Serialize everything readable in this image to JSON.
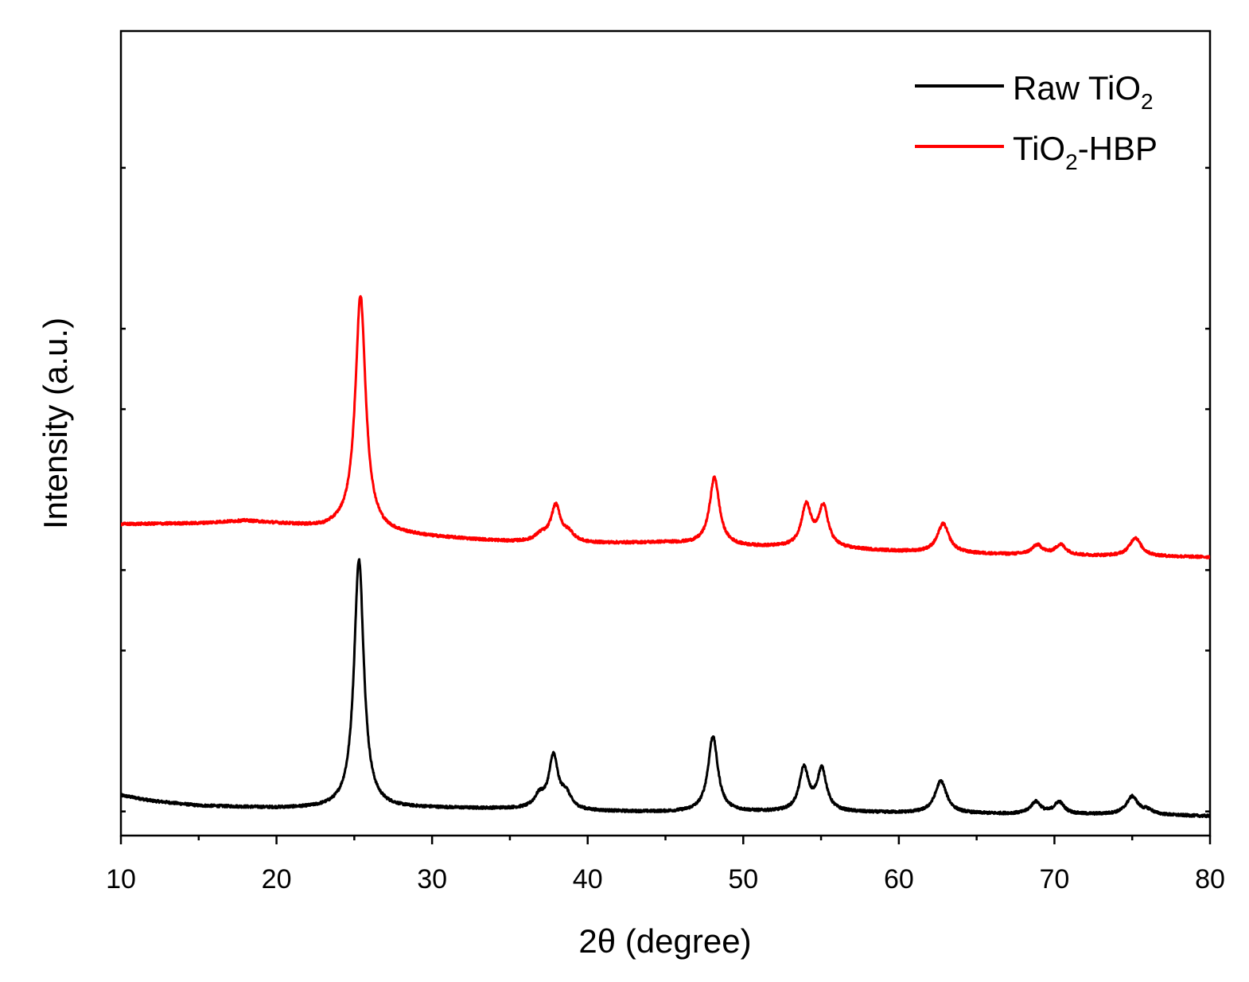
{
  "chart_data": {
    "type": "line",
    "title": "",
    "xlabel": "2θ (degree)",
    "ylabel": "Intensity (a.u.)",
    "xlim": [
      10,
      80
    ],
    "ylim": [
      0,
      1000
    ],
    "x_major_ticks": [
      10,
      20,
      30,
      40,
      50,
      60,
      70,
      80
    ],
    "x_minor_ticks": [
      15,
      25,
      35,
      45,
      55,
      65,
      75
    ],
    "y_tick_values": [
      30,
      230,
      330,
      530,
      630,
      830
    ],
    "grid": false,
    "legend_location": "top-right",
    "series": [
      {
        "name": "Raw TiO2",
        "label_parts": {
          "prefix": "Raw TiO",
          "sub": "2",
          "suffix": ""
        },
        "color": "#000000",
        "baseline": [
          [
            10,
            50
          ],
          [
            12,
            43
          ],
          [
            15,
            37
          ],
          [
            20,
            34
          ],
          [
            25,
            33
          ],
          [
            30,
            34
          ],
          [
            35,
            33
          ],
          [
            40,
            30
          ],
          [
            45,
            29
          ],
          [
            50,
            29
          ],
          [
            55,
            29
          ],
          [
            60,
            28
          ],
          [
            65,
            27
          ],
          [
            70,
            26
          ],
          [
            75,
            26
          ],
          [
            80,
            24
          ]
        ],
        "peaks": [
          {
            "x": 25.3,
            "height": 310,
            "width": 0.38
          },
          {
            "x": 36.9,
            "height": 15,
            "width": 0.4
          },
          {
            "x": 37.8,
            "height": 65,
            "width": 0.35
          },
          {
            "x": 38.6,
            "height": 18,
            "width": 0.4
          },
          {
            "x": 48.05,
            "height": 94,
            "width": 0.38
          },
          {
            "x": 53.9,
            "height": 53,
            "width": 0.36
          },
          {
            "x": 55.05,
            "height": 52,
            "width": 0.36
          },
          {
            "x": 62.7,
            "height": 40,
            "width": 0.45
          },
          {
            "x": 68.8,
            "height": 15,
            "width": 0.4
          },
          {
            "x": 70.3,
            "height": 15,
            "width": 0.4
          },
          {
            "x": 75.0,
            "height": 22,
            "width": 0.45
          },
          {
            "x": 76.0,
            "height": 5,
            "width": 0.4
          }
        ]
      },
      {
        "name": "TiO2-HBP",
        "label_parts": {
          "prefix": "TiO",
          "sub": "2",
          "suffix": "-HBP"
        },
        "color": "#ff0000",
        "baseline": [
          [
            10,
            387
          ],
          [
            15,
            388
          ],
          [
            18,
            391
          ],
          [
            21,
            386
          ],
          [
            23,
            382
          ],
          [
            25,
            385
          ],
          [
            27,
            376
          ],
          [
            30,
            371
          ],
          [
            35,
            365
          ],
          [
            40,
            363
          ],
          [
            45,
            364
          ],
          [
            50,
            359
          ],
          [
            55,
            357
          ],
          [
            60,
            353
          ],
          [
            65,
            350
          ],
          [
            70,
            348
          ],
          [
            75,
            347
          ],
          [
            80,
            346
          ]
        ],
        "peaks": [
          {
            "x": 25.4,
            "height": 288,
            "width": 0.4
          },
          {
            "x": 37.0,
            "height": 8,
            "width": 0.45
          },
          {
            "x": 37.95,
            "height": 45,
            "width": 0.38
          },
          {
            "x": 38.8,
            "height": 10,
            "width": 0.4
          },
          {
            "x": 48.15,
            "height": 84,
            "width": 0.38
          },
          {
            "x": 54.05,
            "height": 51,
            "width": 0.38
          },
          {
            "x": 55.15,
            "height": 50,
            "width": 0.38
          },
          {
            "x": 62.85,
            "height": 36,
            "width": 0.45
          },
          {
            "x": 68.9,
            "height": 12,
            "width": 0.42
          },
          {
            "x": 70.4,
            "height": 13,
            "width": 0.42
          },
          {
            "x": 75.2,
            "height": 23,
            "width": 0.45
          }
        ]
      }
    ]
  }
}
